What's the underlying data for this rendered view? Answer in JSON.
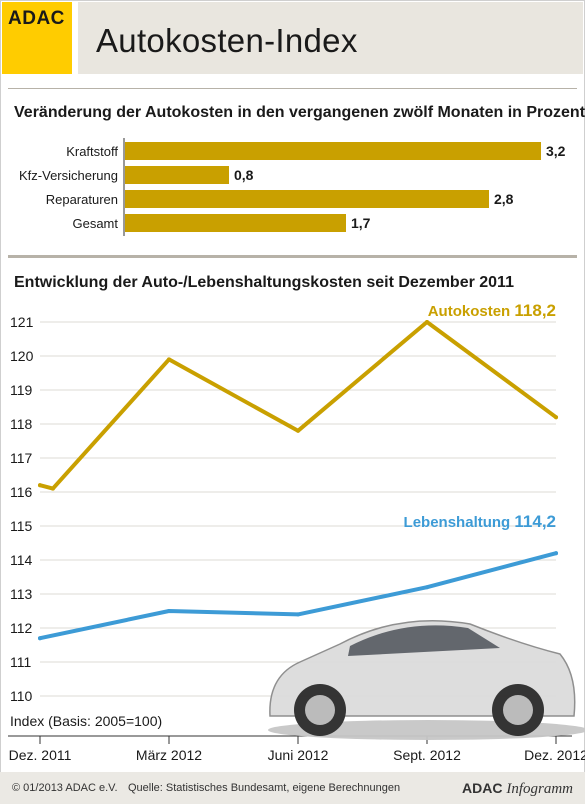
{
  "header": {
    "logo_text": "ADAC",
    "title": "Autokosten-Index"
  },
  "colors": {
    "gold": "#c9a000",
    "blue": "#3d9bd6",
    "logo_yellow": "#ffcc00"
  },
  "chart_data": [
    {
      "type": "bar",
      "orientation": "horizontal",
      "title": "Veränderung der Autokosten in den vergangenen zwölf Monaten in Prozent",
      "categories": [
        "Kraftstoff",
        "Kfz-Versicherung",
        "Reparaturen",
        "Gesamt"
      ],
      "values": [
        3.2,
        0.8,
        2.8,
        1.7
      ],
      "value_labels": [
        "3,2",
        "0,8",
        "2,8",
        "1,7"
      ],
      "xlim": [
        0,
        3.2
      ]
    },
    {
      "type": "line",
      "title": "Entwicklung der Auto-/Lebenshaltungskosten seit Dezember 2011",
      "note": "Index (Basis: 2005=100)",
      "x_ticks": [
        "Dez. 2011",
        "März 2012",
        "Juni 2012",
        "Sept. 2012",
        "Dez. 2012"
      ],
      "y_ticks": [
        "110",
        "111",
        "112",
        "113",
        "114",
        "115",
        "116",
        "117",
        "118",
        "119",
        "120",
        "121"
      ],
      "ylim": [
        110,
        121
      ],
      "grid": true,
      "series": [
        {
          "name": "Autokosten",
          "end_label": "118,2",
          "color": "#c9a000",
          "x": [
            0,
            0.3,
            3,
            6,
            9,
            12
          ],
          "values": [
            116.2,
            116.1,
            119.9,
            117.8,
            121.0,
            118.2
          ]
        },
        {
          "name": "Lebenshaltung",
          "end_label": "114,2",
          "color": "#3d9bd6",
          "x": [
            0,
            3,
            6,
            9,
            12
          ],
          "values": [
            111.7,
            112.5,
            112.4,
            113.2,
            114.2
          ]
        }
      ]
    }
  ],
  "footer": {
    "copyright": "© 01/2013 ADAC e.V.",
    "source": "Quelle: Statistisches Bundesamt, eigene Berechnungen",
    "brand_bold": "ADAC",
    "brand_italic": "Infogramm"
  }
}
